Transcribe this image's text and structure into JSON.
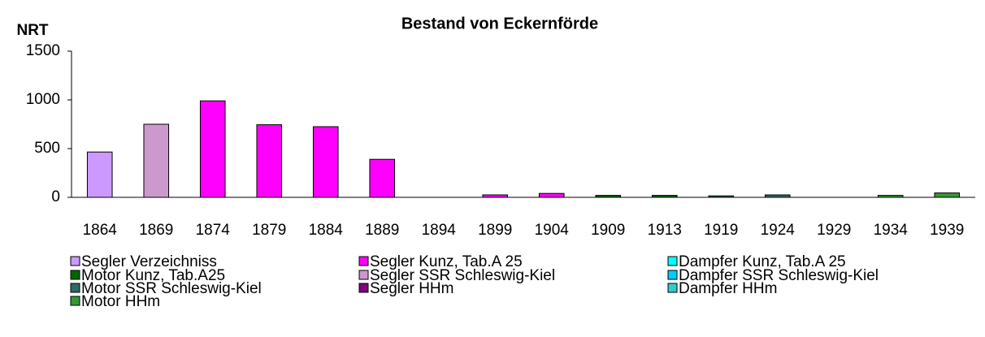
{
  "chart_data": {
    "type": "bar",
    "stacked": true,
    "title": "Bestand von Eckernförde",
    "y_label": "NRT",
    "categories": [
      "1864",
      "1869",
      "1874",
      "1879",
      "1884",
      "1889",
      "1894",
      "1899",
      "1904",
      "1909",
      "1913",
      "1919",
      "1924",
      "1929",
      "1934",
      "1939"
    ],
    "series": [
      {
        "name": "Segler Verzeichniss",
        "color": "#cc99ff",
        "values": [
          465,
          null,
          null,
          null,
          null,
          null,
          null,
          null,
          null,
          null,
          null,
          null,
          null,
          null,
          null,
          null
        ]
      },
      {
        "name": "Segler Kunz, Tab.A 25",
        "color": "#ff00ff",
        "values": [
          null,
          null,
          990,
          745,
          725,
          390,
          null,
          25,
          40,
          null,
          null,
          null,
          null,
          null,
          null,
          null
        ]
      },
      {
        "name": "Dampfer Kunz, Tab.A 25",
        "color": "#00ffff",
        "values": [
          null,
          null,
          null,
          null,
          null,
          null,
          null,
          null,
          null,
          null,
          null,
          null,
          null,
          null,
          null,
          null
        ]
      },
      {
        "name": "Motor Kunz, Tab.A25",
        "color": "#006600",
        "values": [
          null,
          null,
          null,
          null,
          null,
          null,
          null,
          null,
          null,
          20,
          20,
          null,
          null,
          null,
          null,
          null
        ]
      },
      {
        "name": "Segler SSR Schleswig-Kiel",
        "color": "#cc99cc",
        "values": [
          null,
          750,
          null,
          null,
          null,
          null,
          null,
          null,
          null,
          null,
          null,
          null,
          null,
          null,
          null,
          null
        ]
      },
      {
        "name": "Dampfer SSR Schleswig-Kiel",
        "color": "#00ccff",
        "values": [
          null,
          null,
          null,
          null,
          null,
          null,
          null,
          null,
          null,
          null,
          null,
          null,
          null,
          null,
          null,
          null
        ]
      },
      {
        "name": "Motor SSR Schleswig-Kiel",
        "color": "#336666",
        "values": [
          null,
          null,
          null,
          null,
          null,
          null,
          null,
          null,
          null,
          null,
          null,
          15,
          25,
          null,
          null,
          null
        ]
      },
      {
        "name": "Segler HHm",
        "color": "#800080",
        "values": [
          null,
          null,
          null,
          null,
          null,
          null,
          null,
          null,
          null,
          null,
          null,
          null,
          null,
          null,
          null,
          null
        ]
      },
      {
        "name": "Dampfer HHm",
        "color": "#33cccc",
        "values": [
          null,
          null,
          null,
          null,
          null,
          null,
          null,
          null,
          null,
          null,
          null,
          null,
          null,
          null,
          null,
          null
        ]
      },
      {
        "name": "Motor HHm",
        "color": "#339933",
        "values": [
          null,
          null,
          null,
          null,
          null,
          null,
          null,
          null,
          null,
          null,
          null,
          null,
          null,
          null,
          20,
          45
        ]
      }
    ],
    "ylim": [
      0,
      1500
    ],
    "yticks": [
      0,
      500,
      1000,
      1500
    ],
    "grid": false,
    "legend": "bottom"
  }
}
